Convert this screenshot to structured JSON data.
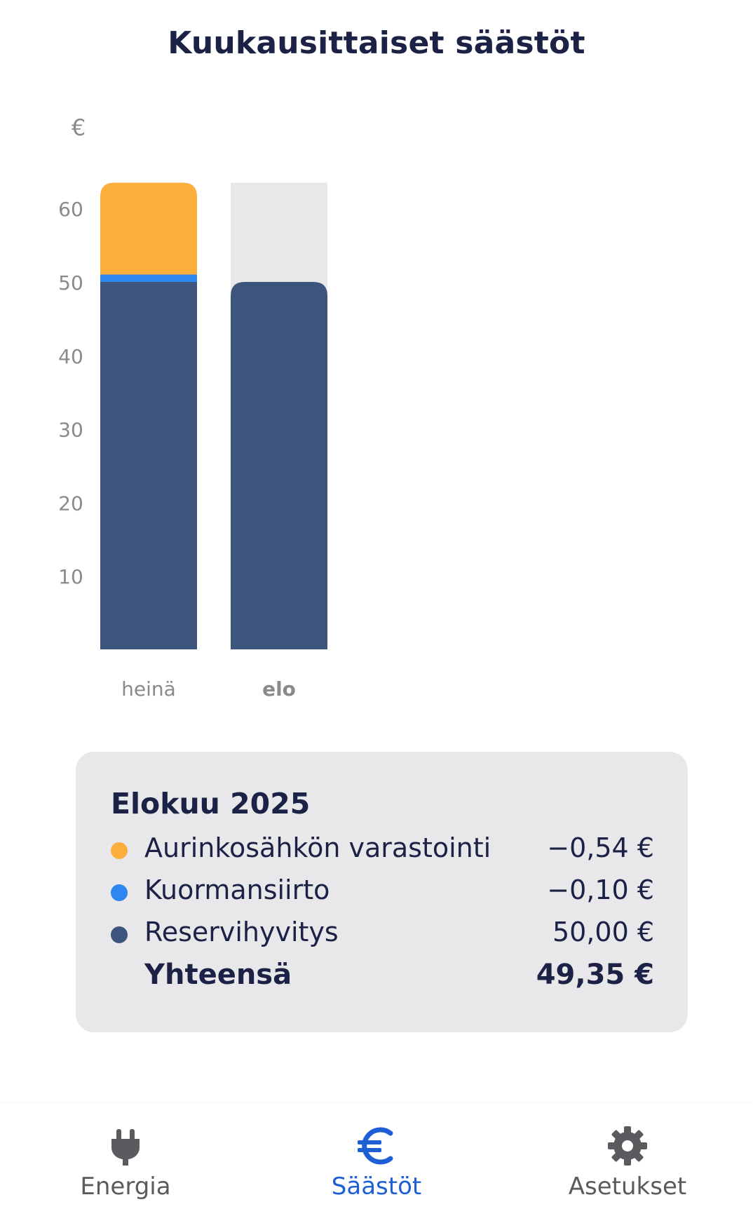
{
  "page": {
    "title": "Kuukausittaiset säästöt"
  },
  "chart_data": {
    "type": "bar",
    "stacked": true,
    "title": "",
    "ylabel": "€",
    "xlabel": "",
    "ylim": [
      0,
      63.5
    ],
    "yticks": [
      10,
      20,
      30,
      40,
      50,
      60
    ],
    "categories": [
      "heinä",
      "elo"
    ],
    "selected_category": "elo",
    "series": [
      {
        "name": "Reservihyvitys",
        "color": "#3d557d",
        "values": [
          50.0,
          50.0
        ]
      },
      {
        "name": "Kuormansiirto",
        "color": "#2e86f0",
        "values": [
          1.0,
          -0.1
        ]
      },
      {
        "name": "Aurinkosähkön varastointi",
        "color": "#fcae3c",
        "values": [
          12.5,
          -0.54
        ]
      }
    ],
    "background_bar_color": "#e8e8eb",
    "grid": false,
    "legend": "none"
  },
  "summary": {
    "title": "Elokuu 2025",
    "rows": [
      {
        "label": "Aurinkosähkön varastointi",
        "value": "−0,54 €",
        "color": "#fcae3c"
      },
      {
        "label": "Kuormansiirto",
        "value": "−0,10 €",
        "color": "#2e86f0"
      },
      {
        "label": "Reservihyvitys",
        "value": "50,00 €",
        "color": "#3d557d"
      }
    ],
    "total": {
      "label": "Yhteensä",
      "value": "49,35 €"
    }
  },
  "nav": {
    "items": [
      {
        "label": "Energia",
        "icon": "plug-icon",
        "active": false
      },
      {
        "label": "Säästöt",
        "icon": "euro-icon",
        "active": true
      },
      {
        "label": "Asetukset",
        "icon": "gear-icon",
        "active": false
      }
    ],
    "active_color": "#1e5fd6",
    "inactive_color": "#5a5a5f"
  }
}
